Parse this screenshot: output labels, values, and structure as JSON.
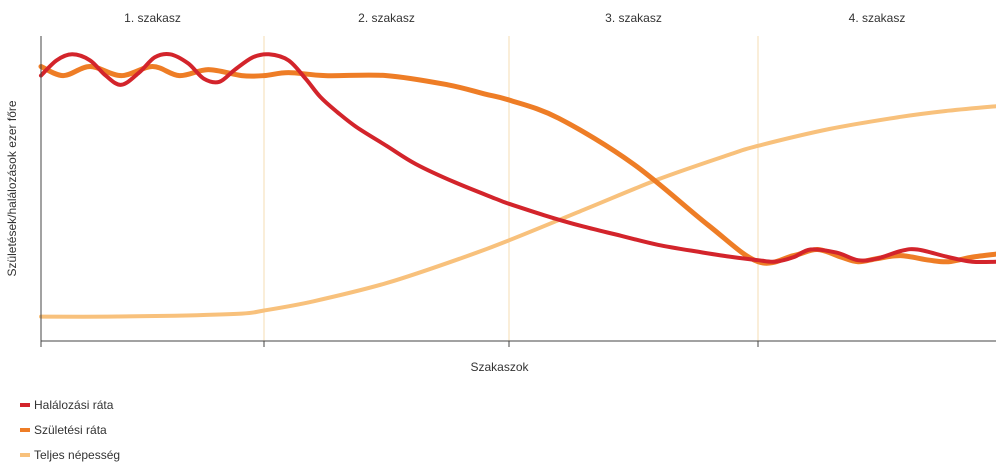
{
  "chart_data": {
    "type": "line",
    "stages": [
      "1. szakasz",
      "2.  szakasz",
      "3.  szakasz",
      "4. szakasz"
    ],
    "ylabel": "Születések/halálozások ezer főre",
    "xlabel": "Szakaszok",
    "x_range": [
      0,
      4
    ],
    "y_range": [
      0,
      100
    ],
    "grid": "vertical stage boundaries",
    "legend_position": "bottom-left",
    "series": [
      {
        "name": "Halálozási ráta",
        "color": "#d3242b",
        "stroke_width": 4,
        "x": [
          0,
          0.07,
          0.14,
          0.22,
          0.29,
          0.36,
          0.44,
          0.51,
          0.58,
          0.66,
          0.73,
          0.8,
          0.87,
          0.95,
          1.02,
          1.1,
          1.17,
          1.23,
          1.3,
          1.38,
          1.5,
          1.62,
          1.78,
          1.95,
          2.0,
          2.15,
          2.3,
          2.45,
          2.6,
          2.78,
          2.9,
          3.0,
          3.07,
          3.15,
          3.22,
          3.33,
          3.42,
          3.5,
          3.6,
          3.67,
          3.8,
          3.9,
          4.0
        ],
        "y": [
          87,
          92,
          94,
          92,
          87,
          84,
          88,
          93,
          94,
          91,
          86,
          85,
          89,
          93,
          94,
          92,
          86,
          80,
          75,
          70,
          64,
          58,
          52,
          46.5,
          45,
          41,
          37.5,
          34.5,
          31.5,
          29,
          27.5,
          26.5,
          26,
          27.5,
          30,
          29,
          26.5,
          27,
          29.5,
          30,
          27.5,
          26,
          26
        ]
      },
      {
        "name": "Születési ráta",
        "color": "#ee7d26",
        "stroke_width": 5,
        "x": [
          0,
          0.1,
          0.22,
          0.36,
          0.5,
          0.62,
          0.75,
          0.9,
          1.0,
          1.1,
          1.25,
          1.5,
          1.75,
          1.9,
          2.0,
          2.2,
          2.5,
          2.8,
          3.0,
          3.15,
          3.25,
          3.35,
          3.42,
          3.5,
          3.6,
          3.72,
          3.8,
          3.9,
          4.0
        ],
        "y": [
          90,
          87,
          90,
          87,
          90,
          87,
          89,
          87,
          87,
          88,
          87,
          87,
          84,
          81,
          79,
          73,
          58,
          38,
          26,
          28,
          30,
          27.5,
          26,
          27,
          28,
          26.5,
          26,
          27.5,
          28.5
        ]
      },
      {
        "name": "Teljes népesség",
        "color": "#f8c17c",
        "stroke_width": 4,
        "x": [
          0,
          0.3,
          0.6,
          0.9,
          1.0,
          1.2,
          1.5,
          1.8,
          2.0,
          2.3,
          2.6,
          2.9,
          3.0,
          3.3,
          3.6,
          3.8,
          4.0
        ],
        "y": [
          8,
          8,
          8.3,
          9,
          10,
          13,
          19,
          27,
          33,
          43,
          53,
          61.5,
          64,
          69.5,
          73.5,
          75.5,
          77
        ]
      }
    ]
  },
  "legend": {
    "items": [
      {
        "label": "Halálozási ráta",
        "color": "#d3242b"
      },
      {
        "label": "Születési ráta",
        "color": "#ee7d26"
      },
      {
        "label": "Teljes népesség",
        "color": "#f8c17c"
      }
    ]
  }
}
